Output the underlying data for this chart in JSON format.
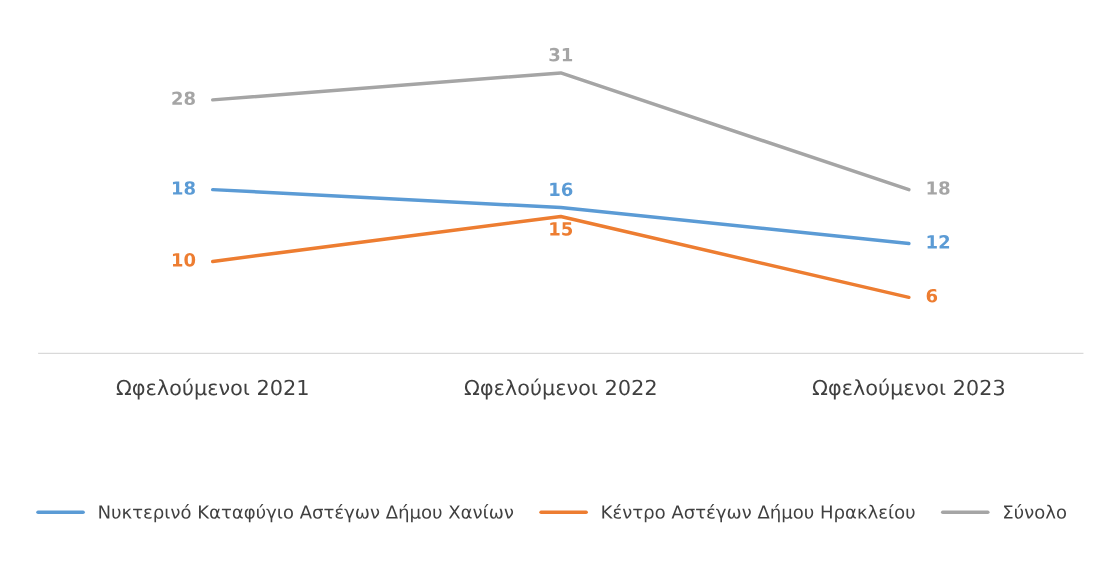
{
  "chart_data": {
    "type": "line",
    "categories": [
      "Ωφελούμενοι 2021",
      "Ωφελούμενοι 2022",
      "Ωφελούμενοι 2023"
    ],
    "series": [
      {
        "name": "Νυκτερινό Καταφύγιο Αστέγων Δήμου Χανίων",
        "color": "#5b9bd5",
        "values": [
          18,
          16,
          12
        ]
      },
      {
        "name": "Κέντρο Αστέγων Δήμου Ηρακλείου",
        "color": "#ed7d31",
        "values": [
          10,
          15,
          6
        ]
      },
      {
        "name": "Σύνολο",
        "color": "#a5a5a5",
        "values": [
          28,
          31,
          18
        ]
      }
    ],
    "data_labels": true,
    "legend": "bottom",
    "grid": false,
    "line_style": "solid",
    "tick_labels": "x"
  }
}
